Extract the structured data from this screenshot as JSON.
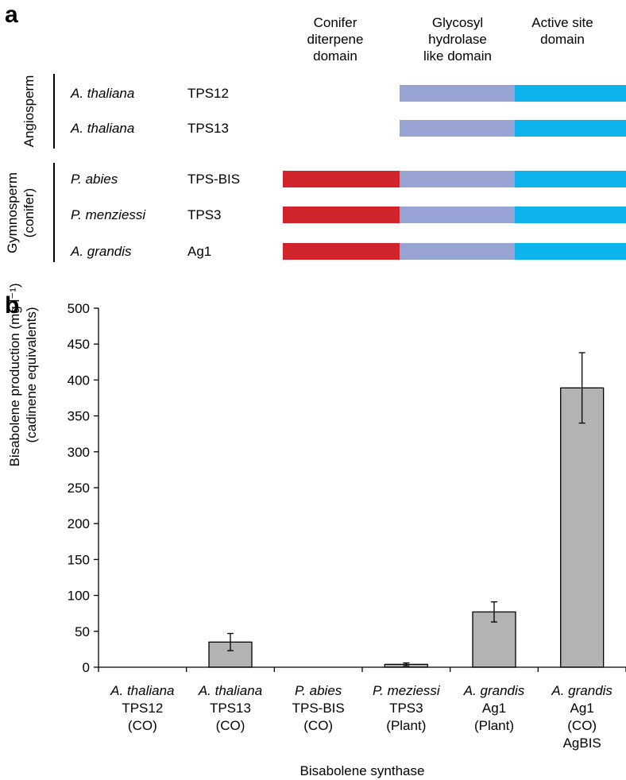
{
  "panels": {
    "a_label": "a",
    "b_label": "b"
  },
  "domains": {
    "headers": [
      {
        "lines": [
          "Conifer",
          "diterpene",
          "domain"
        ]
      },
      {
        "lines": [
          "Glycosyl",
          "hydrolase",
          "like domain"
        ]
      },
      {
        "lines": [
          "Active site",
          "domain"
        ]
      }
    ],
    "colors": {
      "conifer": "#d1232b",
      "glycosyl": "#97a3d2",
      "active": "#0cb3ec"
    },
    "groups": [
      {
        "name": "Angiosperm",
        "lines": [
          "Angiosperm"
        ]
      },
      {
        "name": "Gymnosperm (conifer)",
        "lines": [
          "Gymnosperm",
          "(conifer)"
        ]
      }
    ],
    "rows": [
      {
        "species": "A. thaliana",
        "gene": "TPS12",
        "group": "Angiosperm",
        "domains": [
          "glycosyl",
          "active"
        ]
      },
      {
        "species": "A. thaliana",
        "gene": "TPS13",
        "group": "Angiosperm",
        "domains": [
          "glycosyl",
          "active"
        ]
      },
      {
        "species": "P. abies",
        "gene": "TPS-BIS",
        "group": "Gymnosperm",
        "domains": [
          "conifer",
          "glycosyl",
          "active"
        ]
      },
      {
        "species": "P. menziessi",
        "gene": "TPS3",
        "group": "Gymnosperm",
        "domains": [
          "conifer",
          "glycosyl",
          "active"
        ]
      },
      {
        "species": "A. grandis",
        "gene": "Ag1",
        "group": "Gymnosperm",
        "domains": [
          "conifer",
          "glycosyl",
          "active"
        ]
      }
    ]
  },
  "chart_data": {
    "type": "bar",
    "title": "",
    "xlabel": "Bisabolene synthase",
    "ylabel_lines": [
      "Bisabolene production (mg l⁻¹)",
      "(cadinene equivalents)"
    ],
    "ylim": [
      0,
      500
    ],
    "yticks": [
      0,
      50,
      100,
      150,
      200,
      250,
      300,
      350,
      400,
      450,
      500
    ],
    "bar_color": "#b3b3b3",
    "categories": [
      {
        "species": "A. thaliana",
        "lines": [
          "TPS12",
          "(CO)"
        ]
      },
      {
        "species": "A. thaliana",
        "lines": [
          "TPS13",
          "(CO)"
        ]
      },
      {
        "species": "P. abies",
        "lines": [
          "TPS-BIS",
          "(CO)"
        ]
      },
      {
        "species": "P. meziessi",
        "lines": [
          "TPS3",
          "(Plant)"
        ]
      },
      {
        "species": "A. grandis",
        "lines": [
          "Ag1",
          "(Plant)"
        ]
      },
      {
        "species": "A. grandis",
        "lines": [
          "Ag1",
          "(CO)",
          "AgBIS"
        ]
      }
    ],
    "values": [
      0,
      35,
      0,
      4,
      77,
      389
    ],
    "errors": [
      0,
      12,
      0,
      2,
      14,
      49
    ]
  }
}
